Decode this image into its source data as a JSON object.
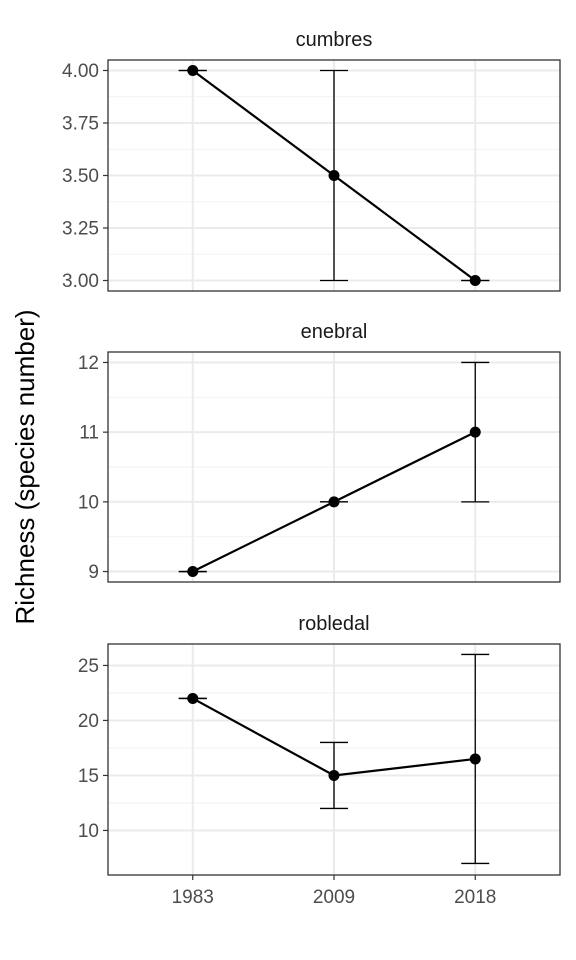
{
  "chart_data": {
    "type": "line",
    "ylabel": "Richness (species number)",
    "x_categories": [
      "1983",
      "2009",
      "2018"
    ],
    "grid": true,
    "panels": [
      {
        "title": "cumbres",
        "ylim": [
          2.95,
          4.05
        ],
        "yticks": [
          3.0,
          3.25,
          3.5,
          3.75,
          4.0
        ],
        "ytick_labels": [
          "3.00",
          "3.25",
          "3.50",
          "3.75",
          "4.00"
        ],
        "points": [
          {
            "x": "1983",
            "y": 4.0,
            "ymin": 4.0,
            "ymax": 4.0
          },
          {
            "x": "2009",
            "y": 3.5,
            "ymin": 3.0,
            "ymax": 4.0
          },
          {
            "x": "2018",
            "y": 3.0,
            "ymin": 3.0,
            "ymax": 3.0
          }
        ]
      },
      {
        "title": "enebral",
        "ylim": [
          8.85,
          12.15
        ],
        "yticks": [
          9,
          10,
          11,
          12
        ],
        "ytick_labels": [
          "9",
          "10",
          "11",
          "12"
        ],
        "points": [
          {
            "x": "1983",
            "y": 9,
            "ymin": 9,
            "ymax": 9
          },
          {
            "x": "2009",
            "y": 10,
            "ymin": 10,
            "ymax": 10
          },
          {
            "x": "2018",
            "y": 11,
            "ymin": 10,
            "ymax": 12
          }
        ]
      },
      {
        "title": "robledal",
        "ylim": [
          5.95,
          26.95
        ],
        "yticks": [
          10,
          15,
          20,
          25
        ],
        "ytick_labels": [
          "10",
          "15",
          "20",
          "25"
        ],
        "points": [
          {
            "x": "1983",
            "y": 22,
            "ymin": 22,
            "ymax": 22
          },
          {
            "x": "2009",
            "y": 15,
            "ymin": 12,
            "ymax": 18
          },
          {
            "x": "2018",
            "y": 16.5,
            "ymin": 7,
            "ymax": 26
          }
        ]
      }
    ]
  }
}
